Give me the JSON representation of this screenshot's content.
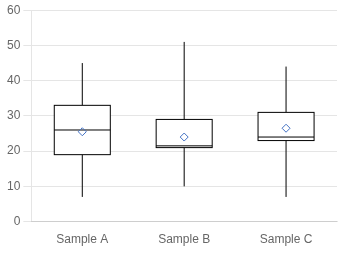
{
  "chart_data": {
    "type": "box",
    "categories": [
      "Sample A",
      "Sample B",
      "Sample C"
    ],
    "series": [
      {
        "type": "box",
        "color": "#000000",
        "whisker_low": [
          7,
          10,
          7
        ],
        "q1": [
          19,
          21,
          23
        ],
        "median": [
          26,
          21.5,
          24
        ],
        "q3": [
          33,
          29,
          31
        ],
        "whisker_high": [
          45,
          51,
          44
        ]
      },
      {
        "type": "scatter",
        "marker": "diamond",
        "color": "#4472c4",
        "values": [
          25.5,
          24,
          26.5
        ]
      }
    ],
    "ylim": [
      0,
      60
    ],
    "yticks": [
      0,
      10,
      20,
      30,
      40,
      50,
      60
    ],
    "grid": true
  }
}
